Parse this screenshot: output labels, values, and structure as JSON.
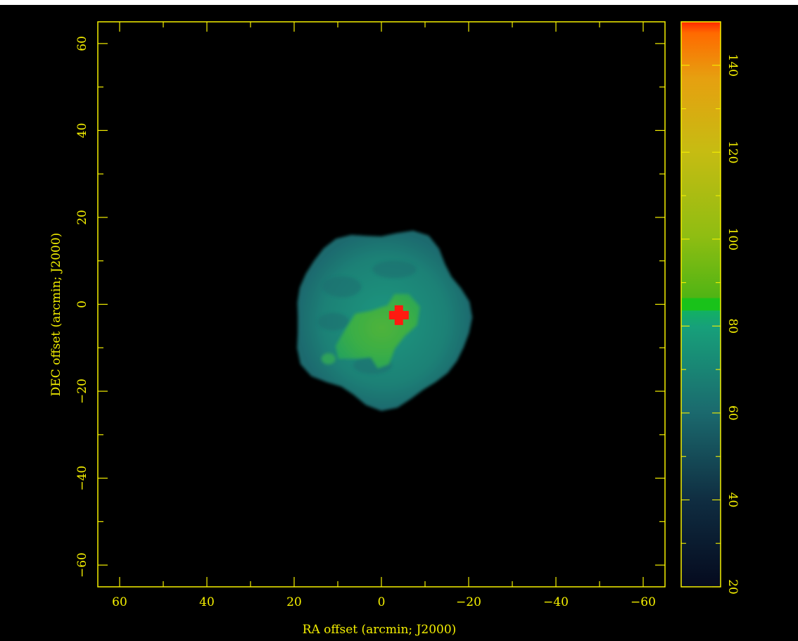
{
  "chart_data": {
    "type": "heatmap",
    "title": "",
    "xlabel": "RA offset (arcmin; J2000)",
    "ylabel": "DEC offset (arcmin; J2000)",
    "xlim": [
      65,
      -65
    ],
    "ylim": [
      -65,
      65
    ],
    "x_ticks": [
      60,
      40,
      20,
      0,
      -20,
      -40,
      -60
    ],
    "x_tick_labels": [
      "60",
      "40",
      "20",
      "0",
      "−20",
      "−40",
      "−60"
    ],
    "y_ticks": [
      60,
      40,
      20,
      0,
      -20,
      -40,
      -60
    ],
    "y_tick_labels": [
      "60",
      "40",
      "20",
      "0",
      "−20",
      "−40",
      "−60"
    ],
    "colorbar": {
      "range": [
        20,
        150
      ],
      "ticks": [
        140,
        120,
        100,
        80,
        60,
        40,
        20
      ],
      "tick_labels": [
        "140",
        "120",
        "100",
        "80",
        "60",
        "40",
        "20"
      ]
    },
    "grid": false,
    "background_color": "#000000",
    "axis_color": "#f5f000",
    "source": {
      "center_ra": 0,
      "center_dec": -3,
      "radius_arcmin": 20,
      "edge_intensity": 52,
      "bright_region_intensity": 84,
      "peak": {
        "ra": -4,
        "dec": -2.5,
        "intensity": 150
      }
    }
  }
}
